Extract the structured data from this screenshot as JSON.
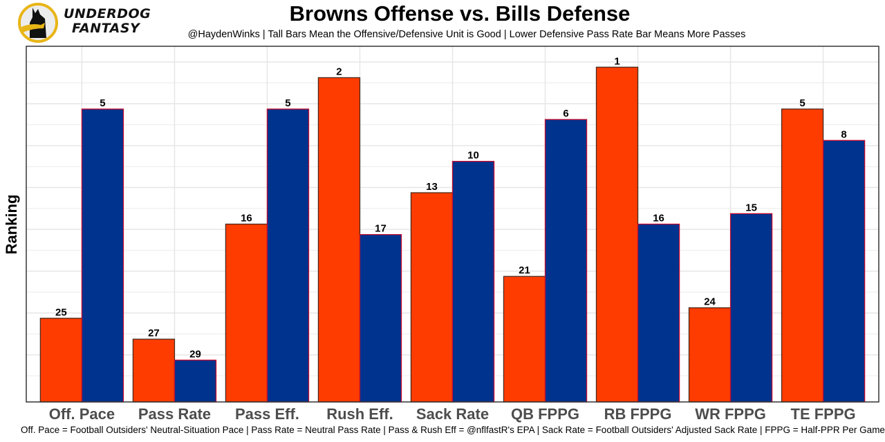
{
  "brand": {
    "line1": "UNDERDOG",
    "line2": "FANTASY",
    "logo_icon": "underdog-dog-logo-icon",
    "accent_color": "#E8B517"
  },
  "chart_data": {
    "type": "bar",
    "title": "Browns Offense vs. Bills Defense",
    "subtitle": "@HaydenWinks | Tall Bars Mean the Offensive/Defensive Unit is Good | Lower Defensive Pass Rate Bar Means More Passes",
    "xlabel": "",
    "ylabel": "Ranking",
    "footnote": "Off. Pace = Football Outsiders' Neutral-Situation Pace | Pass Rate = Neutral Pass Rate | Pass & Rush Eff = @nflfastR's EPA | Sack Rate = Football Outsiders' Adjusted Sack Rate | FPPG = Half-PPR Per Game",
    "categories": [
      "Off. Pace",
      "Pass Rate",
      "Pass Eff.",
      "Rush Eff.",
      "Sack Rate",
      "QB FPPG",
      "RB FPPG",
      "WR FPPG",
      "TE FPPG"
    ],
    "series": [
      {
        "name": "Browns Offense",
        "color": "#FF3C00",
        "border": "#4A2A1A",
        "values": [
          25,
          27,
          16,
          2,
          13,
          21,
          1,
          24,
          5
        ]
      },
      {
        "name": "Bills Defense",
        "color": "#00338D",
        "border": "#C60C30",
        "values": [
          5,
          29,
          5,
          17,
          10,
          6,
          16,
          15,
          8
        ]
      }
    ],
    "bar_height_rule": "height = 33 - rank (rank 1 is tallest)",
    "ylim": [
      0,
      34
    ],
    "y_ticks_shown": false,
    "grid": true,
    "legend": "none"
  }
}
